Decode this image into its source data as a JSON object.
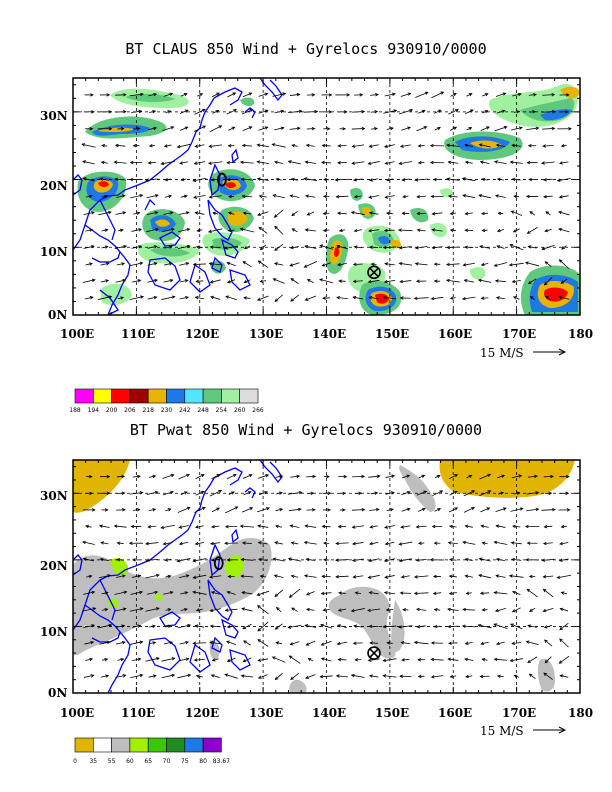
{
  "panels": [
    {
      "title": "BT CLAUS 850 Wind + Gyrelocs 930910/0000",
      "lat_labels": [
        "30N",
        "20N",
        "10N",
        "0N"
      ],
      "lon_labels": [
        "100E",
        "110E",
        "120E",
        "130E",
        "140E",
        "150E",
        "160E",
        "170E",
        "180"
      ],
      "scale_label": "15 M/S",
      "colorbar": {
        "labels": [
          "188",
          "194",
          "200",
          "206",
          "218",
          "230",
          "242",
          "248",
          "254",
          "260",
          "266"
        ],
        "colors": [
          "#ff00ff",
          "#ffff00",
          "#ff0000",
          "#a00000",
          "#e8b400",
          "#1e78e6",
          "#50e6ff",
          "#5fc87d",
          "#a0f0a0",
          "#dcdcdc"
        ]
      },
      "gyrelocs": [
        {
          "symbol": "circled-x",
          "lon": 147.5,
          "lat": 6.3
        },
        {
          "symbol": "circle",
          "lon": 123.5,
          "lat": 20.0
        }
      ]
    },
    {
      "title": "BT Pwat 850 Wind + Gyrelocs 930910/0000",
      "lat_labels": [
        "30N",
        "20N",
        "10N",
        "0N"
      ],
      "lon_labels": [
        "100E",
        "110E",
        "120E",
        "130E",
        "140E",
        "150E",
        "160E",
        "170E",
        "180"
      ],
      "scale_label": "15 M/S",
      "colorbar": {
        "labels": [
          "0",
          "35",
          "55",
          "60",
          "65",
          "70",
          "75",
          "80",
          "83.67"
        ],
        "colors": [
          "#e0b400",
          "#ffffff",
          "#bebebe",
          "#a0f000",
          "#3cc800",
          "#1e8c1e",
          "#1e78e6",
          "#8c00d2"
        ]
      },
      "gyrelocs": [
        {
          "symbol": "circled-x",
          "lon": 147.5,
          "lat": 6.0
        },
        {
          "symbol": "circle",
          "lon": 123.0,
          "lat": 19.5
        }
      ]
    }
  ],
  "style": {
    "coast_color": "#0000ff",
    "grid_color": "#000000",
    "arrow_color": "#000000",
    "lon_range": [
      100,
      180
    ],
    "lat_range": [
      0,
      35
    ]
  }
}
